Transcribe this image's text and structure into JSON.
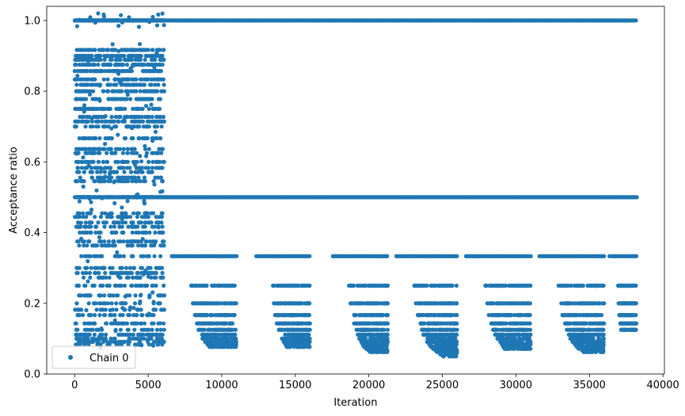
{
  "chart_data": {
    "type": "scatter",
    "xlabel": "Iteration",
    "ylabel": "Acceptance ratio",
    "xlim": [
      -1900,
      40100
    ],
    "ylim": [
      0.0,
      1.04
    ],
    "xticks": [
      0,
      5000,
      10000,
      15000,
      20000,
      25000,
      30000,
      35000,
      40000
    ],
    "yticks": [
      0.0,
      0.2,
      0.4,
      0.6,
      0.8,
      1.0
    ],
    "xtick_labels": [
      "0",
      "5000",
      "10000",
      "15000",
      "20000",
      "25000",
      "30000",
      "35000",
      "40000"
    ],
    "ytick_labels": [
      "0.0",
      "0.2",
      "0.4",
      "0.6",
      "0.8",
      "1.0"
    ],
    "grid": false,
    "legend_position": "lower-left",
    "series": [
      {
        "name": "Chain 0",
        "color": "#1f77b4",
        "marker": "circle",
        "x_range": [
          0,
          38200
        ],
        "burn_in_end": 6100,
        "early_levels": [
          1.0,
          0.9167,
          0.9,
          0.8889,
          0.875,
          0.8571,
          0.8333,
          0.8182,
          0.8,
          0.7778,
          0.75,
          0.7273,
          0.7143,
          0.7,
          0.6667,
          0.6364,
          0.625,
          0.6,
          0.5833,
          0.5714,
          0.5556,
          0.5455,
          0.5,
          0.4545,
          0.4444,
          0.4286,
          0.4167,
          0.4,
          0.375,
          0.3636,
          0.3333,
          0.3,
          0.2857,
          0.2727,
          0.25,
          0.2222,
          0.2,
          0.1818,
          0.1667,
          0.1429,
          0.125,
          0.1111,
          0.1,
          0.0909,
          0.0833
        ],
        "late_levels": [
          1.0,
          0.5,
          0.3333,
          0.25,
          0.2,
          0.1667,
          0.1429,
          0.125,
          0.1111,
          0.1,
          0.0909,
          0.0833,
          0.0769,
          0.0714,
          0.0667,
          0.0625,
          0.0588,
          0.0556,
          0.05
        ],
        "late_bursts": [
          {
            "start": 6200,
            "end": 11000,
            "min": 0.0769
          },
          {
            "start": 12000,
            "end": 16000,
            "min": 0.0769
          },
          {
            "start": 17200,
            "end": 21300,
            "min": 0.0625
          },
          {
            "start": 21500,
            "end": 26000,
            "min": 0.05
          },
          {
            "start": 26200,
            "end": 31000,
            "min": 0.0714
          },
          {
            "start": 31200,
            "end": 36000,
            "min": 0.0625
          },
          {
            "start": 36200,
            "end": 38200,
            "min": 0.125
          }
        ]
      }
    ]
  }
}
